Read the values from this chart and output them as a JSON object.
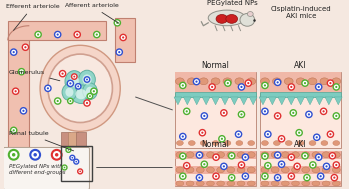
{
  "bg_color": "#f5e8e0",
  "kidney_bg": "#f0c0b0",
  "red_np": "#e03030",
  "green_np": "#50b030",
  "blue_np": "#3050d0",
  "labels": {
    "efferent": "Efferent arteriole",
    "afferent": "Afferent arteriole",
    "glomerulus": "Glomerulus",
    "renal_tubule": "Renal tubule",
    "peg_nps": "PEGylated NPs",
    "aki_mice": "Cisplatin-induced\nAKI mice",
    "normal1": "Normal",
    "aki1": "AKI",
    "normal2": "Normal",
    "aki2": "AKI",
    "legend_title": "PEGylated NPs with\ndifferent end-groups"
  },
  "np_colors_order": [
    "#50b030",
    "#3050d0",
    "#e03030"
  ]
}
